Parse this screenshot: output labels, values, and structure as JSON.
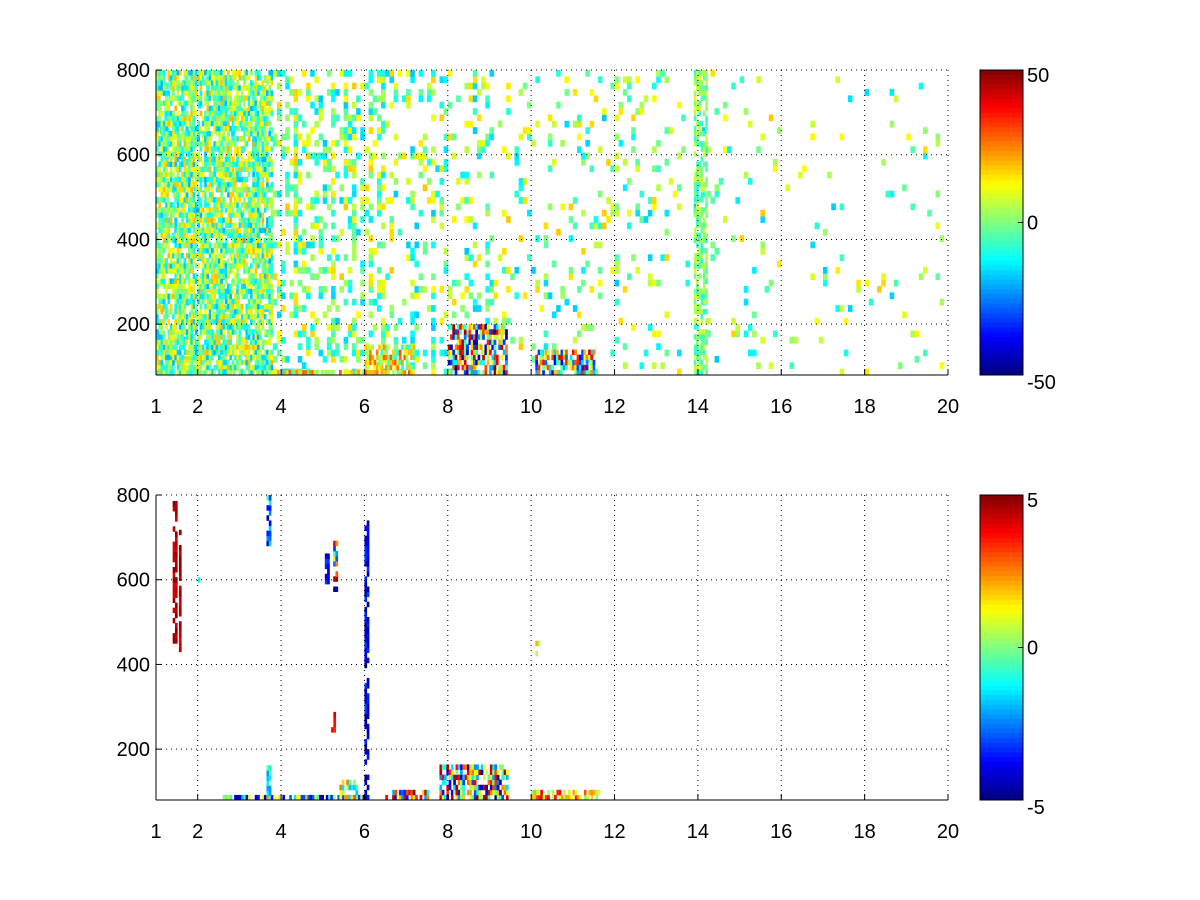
{
  "chart_data": [
    {
      "type": "heatmap",
      "title": "",
      "xlabel": "",
      "ylabel": "",
      "xlim": [
        1,
        20
      ],
      "ylim": [
        80,
        800
      ],
      "x_ticks": [
        1,
        2,
        4,
        6,
        8,
        10,
        12,
        14,
        16,
        18,
        20
      ],
      "y_ticks": [
        200,
        400,
        600,
        800
      ],
      "grid": "dotted",
      "colormap": "jet",
      "clim": [
        -50,
        50
      ],
      "colorbar_ticks": [
        50,
        0,
        -50
      ],
      "cell_density": [
        0.34,
        0.34,
        0.34,
        0.32,
        0.25,
        0.2,
        0.2,
        0.14,
        0.11,
        0.09,
        0.12,
        0.1,
        0.07,
        0.06,
        0.05,
        0.04,
        0.04,
        0.03,
        0.03,
        0.03
      ],
      "value_spread": 18,
      "features": [
        {
          "x": [
            8.0,
            9.4
          ],
          "y": [
            80,
            200
          ],
          "range": [
            -50,
            50
          ]
        },
        {
          "x": [
            10.1,
            11.5
          ],
          "y": [
            80,
            130
          ],
          "range": [
            -40,
            40
          ]
        },
        {
          "x": [
            6.0,
            7.2
          ],
          "y": [
            80,
            150
          ],
          "range": [
            -10,
            30
          ]
        },
        {
          "x": [
            3.3,
            6.0
          ],
          "y": [
            80,
            90
          ],
          "range": [
            0,
            30
          ]
        },
        {
          "x": [
            1.0,
            3.8
          ],
          "y": [
            80,
            800
          ],
          "range": [
            -20,
            20
          ]
        },
        {
          "x": [
            13.9,
            14.2
          ],
          "y": [
            80,
            800
          ],
          "range": [
            -10,
            10
          ]
        }
      ]
    },
    {
      "type": "heatmap",
      "title": "",
      "xlabel": "",
      "ylabel": "",
      "xlim": [
        1,
        20
      ],
      "ylim": [
        80,
        800
      ],
      "x_ticks": [
        1,
        2,
        4,
        6,
        8,
        10,
        12,
        14,
        16,
        18,
        20
      ],
      "y_ticks": [
        200,
        400,
        600,
        800
      ],
      "grid": "dotted",
      "colormap": "jet",
      "clim": [
        -5,
        5
      ],
      "colorbar_ticks": [
        5,
        0,
        -5
      ],
      "features": [
        {
          "x": [
            7.8,
            9.4
          ],
          "y": [
            80,
            160
          ],
          "range": [
            -5,
            5
          ]
        },
        {
          "x": [
            10.0,
            11.6
          ],
          "y": [
            80,
            100
          ],
          "range": [
            0,
            4
          ]
        },
        {
          "x": [
            6.5,
            7.5
          ],
          "y": [
            80,
            100
          ],
          "range": [
            -5,
            5
          ]
        },
        {
          "x": [
            2.6,
            6.0
          ],
          "y": [
            80,
            90
          ],
          "range": [
            -5,
            3
          ]
        },
        {
          "x": [
            1.4,
            1.5
          ],
          "y": [
            450,
            780
          ],
          "range": [
            4,
            5
          ]
        },
        {
          "x": [
            1.55,
            1.6
          ],
          "y": [
            430,
            720
          ],
          "range": [
            4,
            5
          ]
        },
        {
          "x": [
            5.25,
            5.35
          ],
          "y": [
            560,
            690
          ],
          "range": [
            -5,
            5
          ]
        },
        {
          "x": [
            5.05,
            5.15
          ],
          "y": [
            590,
            660
          ],
          "range": [
            -5,
            -3
          ]
        },
        {
          "x": [
            6.0,
            6.1
          ],
          "y": [
            80,
            740
          ],
          "range": [
            -5,
            -3
          ]
        },
        {
          "x": [
            3.65,
            3.75
          ],
          "y": [
            680,
            790
          ],
          "range": [
            -5,
            0
          ]
        },
        {
          "x": [
            5.2,
            5.3
          ],
          "y": [
            240,
            280
          ],
          "range": [
            3,
            5
          ]
        },
        {
          "x": [
            10.1,
            10.2
          ],
          "y": [
            420,
            450
          ],
          "range": [
            0,
            3
          ]
        },
        {
          "x": [
            3.65,
            3.75
          ],
          "y": [
            90,
            160
          ],
          "range": [
            -3,
            0
          ]
        },
        {
          "x": [
            5.4,
            5.8
          ],
          "y": [
            80,
            120
          ],
          "range": [
            -2,
            3
          ]
        },
        {
          "x": [
            2.0,
            2.1
          ],
          "y": [
            570,
            600
          ],
          "range": [
            -3,
            0
          ]
        }
      ]
    }
  ]
}
